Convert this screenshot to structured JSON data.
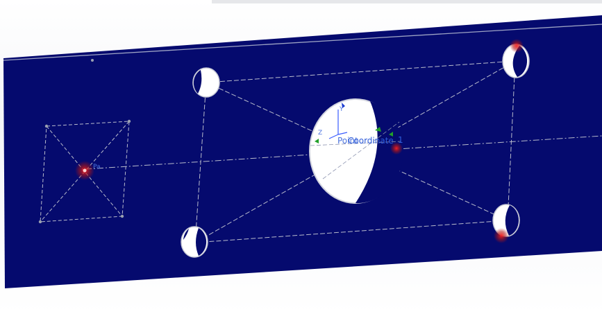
{
  "viewport": {
    "name": "3D model viewport",
    "colors": {
      "part_face": "#050a6e",
      "hole_interior": "#ffffff",
      "sketch_line": "#b9bccc",
      "sketch_point": "#9aa0b0",
      "origin_marker": "#cc1a1a",
      "axis_blue": "#3a5cff",
      "axis_green": "#22a02a"
    }
  },
  "annotations": {
    "coordinate_system_label": "Coordinate",
    "coordinate_overlap_text": "Point",
    "axis_y": "Y",
    "axis_z": "Z",
    "point_label_small": "Pa"
  },
  "features": {
    "holes": [
      {
        "name": "top-left-hole",
        "icon": "circle"
      },
      {
        "name": "top-right-hole",
        "icon": "circle"
      },
      {
        "name": "center-hole",
        "icon": "circle"
      },
      {
        "name": "bottom-left-hole",
        "icon": "circle"
      },
      {
        "name": "bottom-right-hole",
        "icon": "circle"
      }
    ]
  }
}
